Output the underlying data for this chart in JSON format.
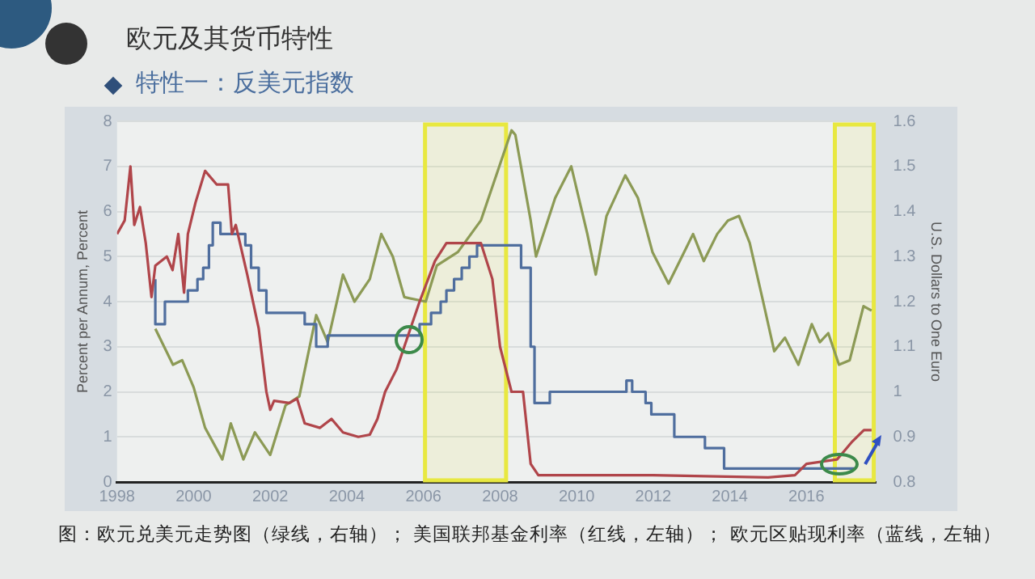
{
  "chart_data": {
    "type": "line",
    "title": "欧元及其货币特性",
    "subtitle": "特性一：反美元指数",
    "ylabel": "Percent per Annum, Percent",
    "y2label": "U.S. Dollars to One Euro",
    "xlim": [
      1998,
      2017.8
    ],
    "xticks": [
      1998,
      2000,
      2002,
      2004,
      2006,
      2008,
      2010,
      2012,
      2014,
      2016
    ],
    "ylim": [
      0,
      8
    ],
    "yticks": [
      0,
      1,
      2,
      3,
      4,
      5,
      6,
      7,
      8
    ],
    "y2lim": [
      0.8,
      1.6
    ],
    "y2ticks": [
      0.8,
      0.9,
      1.0,
      1.1,
      1.2,
      1.3,
      1.4,
      1.5,
      1.6
    ],
    "grid": "y",
    "legend": false,
    "marker": "none",
    "bands": [
      {
        "axis": "x",
        "from": 2006.0,
        "to": 2008.2,
        "color": "#e8e840"
      },
      {
        "axis": "x",
        "from": 2016.7,
        "to": 2017.8,
        "color": "#e8e840"
      }
    ],
    "annotations": [
      "图：欧元兑美元走势图（绿线，右轴）；  美国联邦基金利率（红线，左轴）；  欧元区贴现利率（蓝线，左轴）"
    ],
    "series": [
      {
        "color": "#b0454a",
        "x": [
          1998.0,
          1998.2,
          1998.35,
          1998.45,
          1998.6,
          1998.75,
          1998.9,
          1999.0,
          1999.3,
          1999.45,
          1999.6,
          1999.75,
          1999.85,
          2000.05,
          2000.3,
          2000.6,
          2000.9,
          2001.0,
          2001.1,
          2001.4,
          2001.7,
          2001.9,
          2002.0,
          2002.1,
          2002.5,
          2002.7,
          2002.9,
          2003.3,
          2003.6,
          2003.9,
          2004.3,
          2004.6,
          2004.8,
          2005.0,
          2005.3,
          2005.5,
          2005.9,
          2006.3,
          2006.6,
          2007.5,
          2007.8,
          2008.0,
          2008.3,
          2008.6,
          2008.8,
          2009.0,
          2012.0,
          2015.0,
          2015.7,
          2016.0,
          2016.8,
          2017.0,
          2017.2,
          2017.5,
          2017.7
        ],
        "values": [
          5.5,
          5.8,
          7.0,
          5.7,
          6.1,
          5.3,
          4.1,
          4.8,
          5.0,
          4.7,
          5.5,
          4.2,
          5.5,
          6.2,
          6.9,
          6.6,
          6.6,
          5.5,
          5.7,
          4.6,
          3.4,
          2.0,
          1.6,
          1.8,
          1.75,
          1.85,
          1.3,
          1.2,
          1.4,
          1.1,
          1.0,
          1.05,
          1.4,
          2.0,
          2.5,
          3.0,
          4.0,
          4.9,
          5.3,
          5.3,
          4.5,
          3.0,
          2.0,
          2.0,
          0.4,
          0.15,
          0.15,
          0.1,
          0.15,
          0.4,
          0.5,
          0.7,
          0.9,
          1.15,
          1.15
        ]
      },
      {
        "type": "step",
        "color": "#4f6e9e",
        "x": [
          1999.0,
          1999.25,
          1999.85,
          2000.1,
          2000.25,
          2000.4,
          2000.5,
          2000.7,
          2001.35,
          2001.5,
          2001.7,
          2001.9,
          2002.9,
          2003.2,
          2003.5,
          2005.9,
          2006.2,
          2006.45,
          2006.6,
          2006.8,
          2007.0,
          2007.2,
          2007.4,
          2008.55,
          2008.8,
          2008.9,
          2009.3,
          2011.3,
          2011.45,
          2011.8,
          2011.95,
          2012.55,
          2013.35,
          2013.85,
          2014.5,
          2017.3
        ],
        "values": [
          4.5,
          3.5,
          4.0,
          4.25,
          4.5,
          4.75,
          5.25,
          5.75,
          5.5,
          5.25,
          4.75,
          4.25,
          3.75,
          3.5,
          3.0,
          3.25,
          3.5,
          3.75,
          4.0,
          4.25,
          4.5,
          4.75,
          5.0,
          5.25,
          4.75,
          3.0,
          1.75,
          2.0,
          2.25,
          2.0,
          1.75,
          1.5,
          1.0,
          0.75,
          0.3,
          0.3
        ]
      },
      {
        "axis": "y2",
        "color": "#8c9a55",
        "x": [
          1999.0,
          1999.46,
          1999.7,
          2000.0,
          2000.3,
          2000.75,
          2000.97,
          2001.3,
          2001.6,
          2002.0,
          2002.4,
          2002.76,
          2003.2,
          2003.5,
          2003.9,
          2004.2,
          2004.6,
          2004.9,
          2005.2,
          2005.5,
          2006.06,
          2006.35,
          2006.9,
          2007.5,
          2007.9,
          2008.3,
          2008.4,
          2008.8,
          2008.94,
          2009.44,
          2009.86,
          2010.28,
          2010.5,
          2010.78,
          2011.27,
          2011.6,
          2011.98,
          2012.4,
          2012.75,
          2013.04,
          2013.32,
          2013.67,
          2013.95,
          2014.24,
          2014.52,
          2014.87,
          2015.16,
          2015.44,
          2015.79,
          2016.14,
          2016.35,
          2016.57,
          2016.85,
          2017.13,
          2017.49,
          2017.7
        ],
        "values": [
          1.14,
          1.06,
          1.07,
          1.01,
          0.92,
          0.85,
          0.93,
          0.85,
          0.91,
          0.86,
          0.97,
          0.99,
          1.17,
          1.11,
          1.26,
          1.2,
          1.25,
          1.35,
          1.3,
          1.21,
          1.2,
          1.28,
          1.31,
          1.38,
          1.48,
          1.58,
          1.57,
          1.38,
          1.3,
          1.43,
          1.5,
          1.35,
          1.26,
          1.39,
          1.48,
          1.43,
          1.31,
          1.24,
          1.3,
          1.35,
          1.29,
          1.35,
          1.38,
          1.39,
          1.33,
          1.2,
          1.09,
          1.12,
          1.06,
          1.15,
          1.11,
          1.13,
          1.06,
          1.07,
          1.19,
          1.18
        ]
      }
    ]
  }
}
